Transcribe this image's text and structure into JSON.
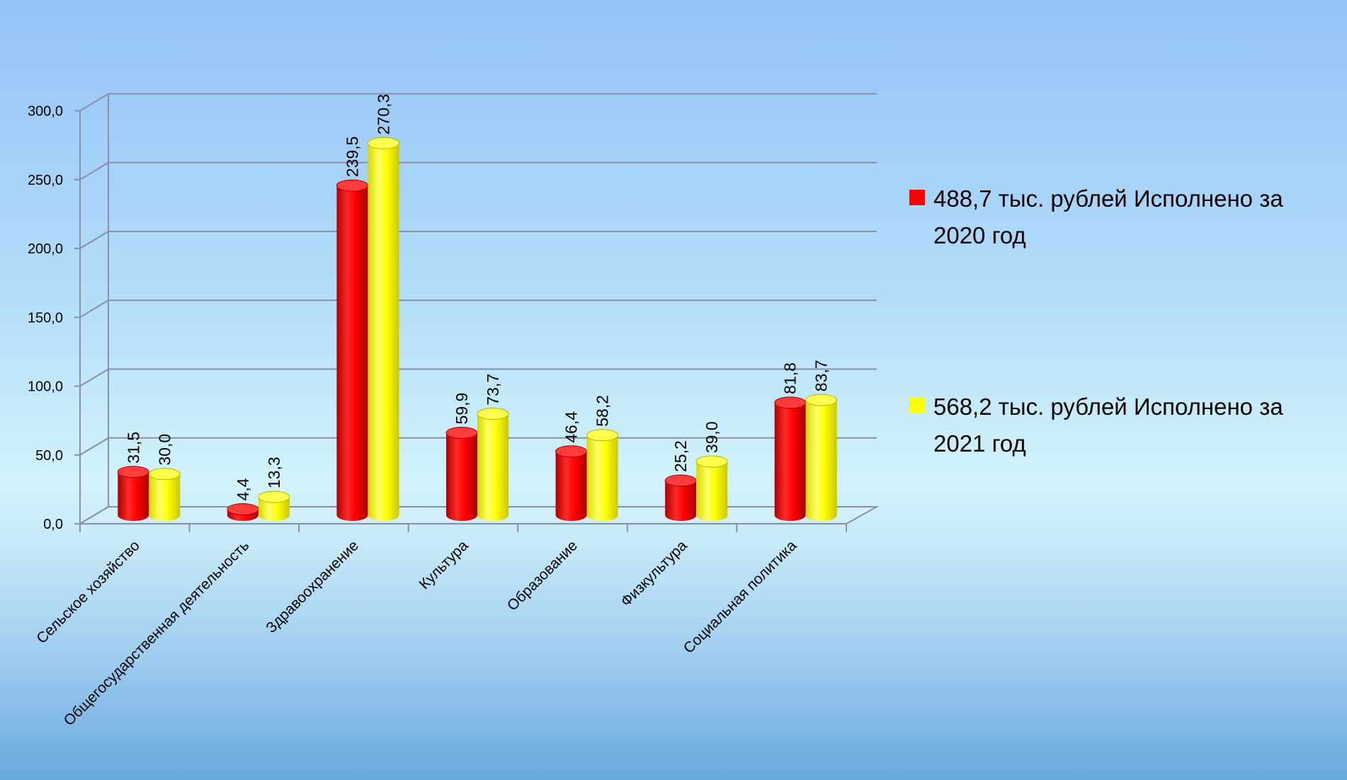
{
  "chart_data": {
    "type": "bar",
    "categories": [
      "Сельское хозяйство",
      "Общегосударственная деятельность",
      "Здравоохранение",
      "Культура",
      "Образование",
      "Физкультура",
      "Социальная политика"
    ],
    "series": [
      {
        "name": "488,7 тыс. рублей Исполнено за 2020 год",
        "legend_lines": [
          "488,7 тыс. рублей Исполнено за",
          "2020 год"
        ],
        "color": "#ff0000",
        "values": [
          31.5,
          4.4,
          239.5,
          59.9,
          46.4,
          25.2,
          81.8
        ],
        "labels": [
          "31,5",
          "4,4",
          "239,5",
          "59,9",
          "46,4",
          "25,2",
          "81,8"
        ]
      },
      {
        "name": "568,2 тыс. рублей Исполнено за 2021 год",
        "legend_lines": [
          "568,2 тыс. рублей Исполнено за",
          "2021 год"
        ],
        "color": "#ffff00",
        "values": [
          30.0,
          13.3,
          270.3,
          73.7,
          58.2,
          39.0,
          83.7
        ],
        "labels": [
          "30,0",
          "13,3",
          "270,3",
          "73,7",
          "58,2",
          "39,0",
          "83,7"
        ]
      }
    ],
    "y_ticks": [
      "0,0",
      "50,0",
      "100,0",
      "150,0",
      "200,0",
      "250,0",
      "300,0"
    ],
    "ylim": [
      0,
      300
    ],
    "grid": true,
    "legend_position": "right",
    "title": "",
    "xlabel": "",
    "ylabel": ""
  }
}
